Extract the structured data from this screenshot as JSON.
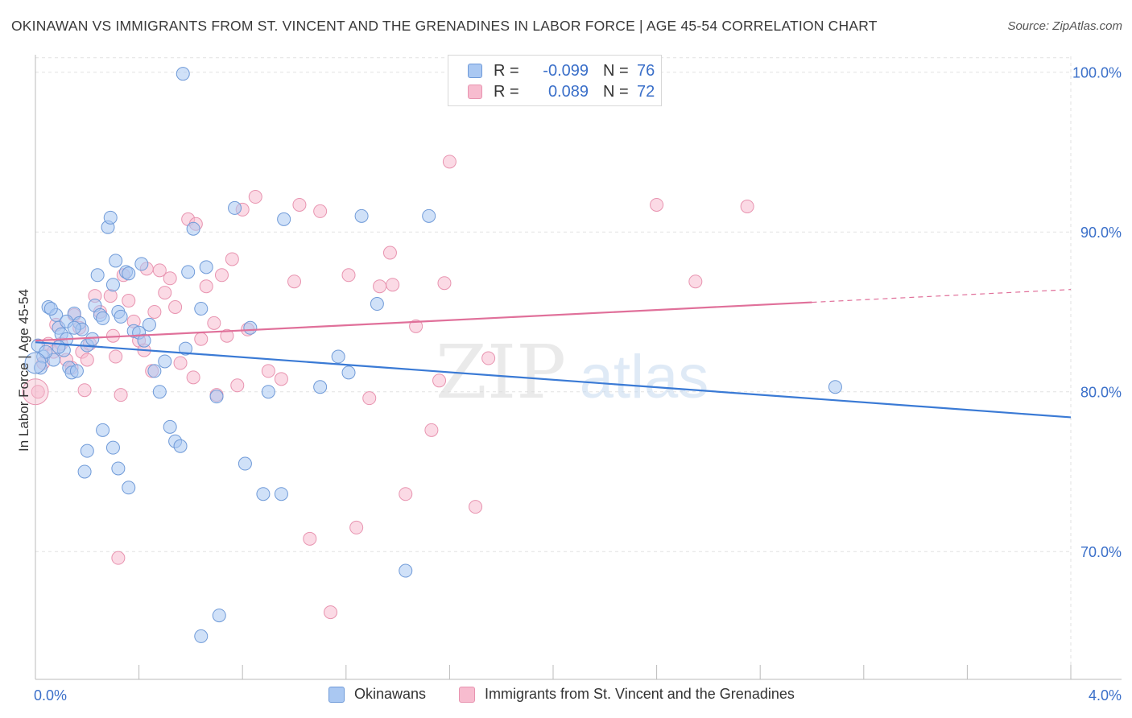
{
  "title": "OKINAWAN VS IMMIGRANTS FROM ST. VINCENT AND THE GRENADINES IN LABOR FORCE | AGE 45-54 CORRELATION CHART",
  "source": "Source: ZipAtlas.com",
  "watermark": {
    "zip": "ZIP",
    "atlas": "atlas"
  },
  "legend": {
    "r_label": "R =",
    "n_label": "N =",
    "rows": [
      {
        "r": "-0.099",
        "n": "76"
      },
      {
        "r": "0.089",
        "n": "72"
      }
    ]
  },
  "chart_data": {
    "type": "scatter",
    "title": "OKINAWAN VS IMMIGRANTS FROM ST. VINCENT AND THE GRENADINES IN LABOR FORCE | AGE 45-54 CORRELATION CHART",
    "xlabel": "",
    "ylabel": "In Labor Force | Age 45-54",
    "xlim": [
      0.0,
      4.0
    ],
    "ylim": [
      62.0,
      102.0
    ],
    "x_tick_labels": [
      "0.0%",
      "4.0%"
    ],
    "y_ticks": [
      70,
      80,
      90,
      100
    ],
    "y_tick_labels": [
      "70.0%",
      "80.0%",
      "90.0%",
      "100.0%"
    ],
    "grid": true,
    "legend_position": "bottom",
    "colors": {
      "okinawan_fill": "#aac8f2",
      "okinawan_stroke": "#6f9ad8",
      "okinawan_line": "#3a7ad5",
      "svg_fill": "#f7bccf",
      "svg_stroke": "#e894b0",
      "svg_line": "#e0709a"
    },
    "series": [
      {
        "name": "Okinawans",
        "r": -0.099,
        "n": 76,
        "trend": {
          "x": [
            0.0,
            4.0
          ],
          "y": [
            83.1,
            78.4
          ]
        },
        "points": [
          [
            0.03,
            82.2
          ],
          [
            0.05,
            85.3
          ],
          [
            0.07,
            82.0
          ],
          [
            0.08,
            84.8
          ],
          [
            0.09,
            84.0
          ],
          [
            0.1,
            83.6
          ],
          [
            0.11,
            82.6
          ],
          [
            0.12,
            83.3
          ],
          [
            0.13,
            81.5
          ],
          [
            0.14,
            81.2
          ],
          [
            0.15,
            84.9
          ],
          [
            0.16,
            81.3
          ],
          [
            0.17,
            84.3
          ],
          [
            0.18,
            83.9
          ],
          [
            0.2,
            82.9
          ],
          [
            0.22,
            83.3
          ],
          [
            0.23,
            85.4
          ],
          [
            0.24,
            87.3
          ],
          [
            0.25,
            84.8
          ],
          [
            0.26,
            84.6
          ],
          [
            0.28,
            90.3
          ],
          [
            0.29,
            90.9
          ],
          [
            0.3,
            86.7
          ],
          [
            0.31,
            88.2
          ],
          [
            0.32,
            85.0
          ],
          [
            0.33,
            84.7
          ],
          [
            0.35,
            87.5
          ],
          [
            0.36,
            87.4
          ],
          [
            0.38,
            83.8
          ],
          [
            0.4,
            83.7
          ],
          [
            0.41,
            88.0
          ],
          [
            0.42,
            83.2
          ],
          [
            0.44,
            84.2
          ],
          [
            0.46,
            81.3
          ],
          [
            0.48,
            80.0
          ],
          [
            0.5,
            81.9
          ],
          [
            0.52,
            77.8
          ],
          [
            0.54,
            76.9
          ],
          [
            0.56,
            76.6
          ],
          [
            0.58,
            82.7
          ],
          [
            0.59,
            87.5
          ],
          [
            0.61,
            90.2
          ],
          [
            0.64,
            85.2
          ],
          [
            0.66,
            87.8
          ],
          [
            0.2,
            76.3
          ],
          [
            0.19,
            75.0
          ],
          [
            0.26,
            77.6
          ],
          [
            0.3,
            76.5
          ],
          [
            0.32,
            75.2
          ],
          [
            0.36,
            74.0
          ],
          [
            0.57,
            99.9
          ],
          [
            0.71,
            66.0
          ],
          [
            0.64,
            64.7
          ],
          [
            0.7,
            79.7
          ],
          [
            0.77,
            91.5
          ],
          [
            0.81,
            75.5
          ],
          [
            0.83,
            84.0
          ],
          [
            0.88,
            73.6
          ],
          [
            0.9,
            80.0
          ],
          [
            0.95,
            73.6
          ],
          [
            0.96,
            90.8
          ],
          [
            1.1,
            80.3
          ],
          [
            1.17,
            82.2
          ],
          [
            1.21,
            81.2
          ],
          [
            1.26,
            91.0
          ],
          [
            1.32,
            85.5
          ],
          [
            1.43,
            68.8
          ],
          [
            1.52,
            91.0
          ],
          [
            3.09,
            80.3
          ],
          [
            0.01,
            82.9
          ],
          [
            0.02,
            81.5
          ],
          [
            0.04,
            82.5
          ],
          [
            0.06,
            85.2
          ],
          [
            0.09,
            82.8
          ],
          [
            0.12,
            84.4
          ],
          [
            0.15,
            84.0
          ]
        ]
      },
      {
        "name": "Immigrants from St. Vincent and the Grenadines",
        "r": 0.089,
        "n": 72,
        "trend": {
          "x": [
            0.0,
            3.0
          ],
          "y": [
            83.2,
            85.6
          ]
        },
        "trend_dashed": {
          "x": [
            3.0,
            4.0
          ],
          "y": [
            85.6,
            86.4
          ]
        },
        "points": [
          [
            0.01,
            80.0
          ],
          [
            0.03,
            81.8
          ],
          [
            0.05,
            83.0
          ],
          [
            0.07,
            82.5
          ],
          [
            0.08,
            84.2
          ],
          [
            0.1,
            83.0
          ],
          [
            0.12,
            82.0
          ],
          [
            0.14,
            81.5
          ],
          [
            0.15,
            84.8
          ],
          [
            0.17,
            84.0
          ],
          [
            0.18,
            82.5
          ],
          [
            0.2,
            82.0
          ],
          [
            0.21,
            83.0
          ],
          [
            0.23,
            86.0
          ],
          [
            0.25,
            85.0
          ],
          [
            0.19,
            80.1
          ],
          [
            0.29,
            86.0
          ],
          [
            0.3,
            83.5
          ],
          [
            0.31,
            82.2
          ],
          [
            0.33,
            79.8
          ],
          [
            0.34,
            87.3
          ],
          [
            0.36,
            85.7
          ],
          [
            0.38,
            84.4
          ],
          [
            0.4,
            83.2
          ],
          [
            0.42,
            82.6
          ],
          [
            0.43,
            87.7
          ],
          [
            0.45,
            81.3
          ],
          [
            0.46,
            85.0
          ],
          [
            0.48,
            87.6
          ],
          [
            0.5,
            86.2
          ],
          [
            0.52,
            87.1
          ],
          [
            0.54,
            85.3
          ],
          [
            0.56,
            81.8
          ],
          [
            0.59,
            90.8
          ],
          [
            0.61,
            80.9
          ],
          [
            0.62,
            90.5
          ],
          [
            0.64,
            83.3
          ],
          [
            0.66,
            86.6
          ],
          [
            0.69,
            84.3
          ],
          [
            0.7,
            79.8
          ],
          [
            0.72,
            87.3
          ],
          [
            0.74,
            83.5
          ],
          [
            0.76,
            88.3
          ],
          [
            0.78,
            80.4
          ],
          [
            0.8,
            91.4
          ],
          [
            0.82,
            83.9
          ],
          [
            0.85,
            92.2
          ],
          [
            0.9,
            81.3
          ],
          [
            0.95,
            80.8
          ],
          [
            1.0,
            86.9
          ],
          [
            1.02,
            91.7
          ],
          [
            1.06,
            70.8
          ],
          [
            1.1,
            91.3
          ],
          [
            1.14,
            66.2
          ],
          [
            1.21,
            87.3
          ],
          [
            1.24,
            71.5
          ],
          [
            1.29,
            79.6
          ],
          [
            1.33,
            86.6
          ],
          [
            1.37,
            88.7
          ],
          [
            1.38,
            86.7
          ],
          [
            1.43,
            73.6
          ],
          [
            1.47,
            84.1
          ],
          [
            1.53,
            77.6
          ],
          [
            1.56,
            80.7
          ],
          [
            1.58,
            86.8
          ],
          [
            1.6,
            94.4
          ],
          [
            1.7,
            72.8
          ],
          [
            1.75,
            82.1
          ],
          [
            2.4,
            91.7
          ],
          [
            2.55,
            86.9
          ],
          [
            2.75,
            91.6
          ],
          [
            0.32,
            69.6
          ]
        ]
      }
    ]
  }
}
